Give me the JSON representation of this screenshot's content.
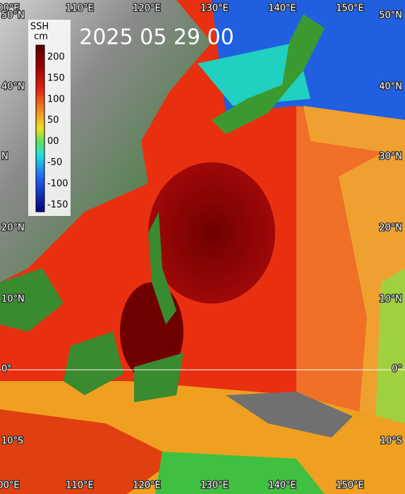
{
  "title": "2025 05 29 00",
  "colorbar": {
    "title": "SSH",
    "unit": "cm",
    "labels": [
      "200",
      "150",
      "100",
      "50",
      "00",
      "-50",
      "-100",
      "-150"
    ]
  },
  "top_lon_labels": [
    "00°E",
    "110°E",
    "120°E",
    "130°E",
    "140°E",
    "150°E"
  ],
  "bottom_lon_labels": [
    "00°E",
    "110°E",
    "120°E",
    "130°E",
    "140°E",
    "150°E"
  ],
  "left_lat_labels": [
    "50°N",
    "40°N",
    "N",
    "20°N",
    "10°N",
    "0°",
    "10°S"
  ],
  "right_lat_labels": [
    "50°N",
    "40°N",
    "30°N",
    "20°N",
    "10°N",
    "0°",
    "10°S"
  ]
}
